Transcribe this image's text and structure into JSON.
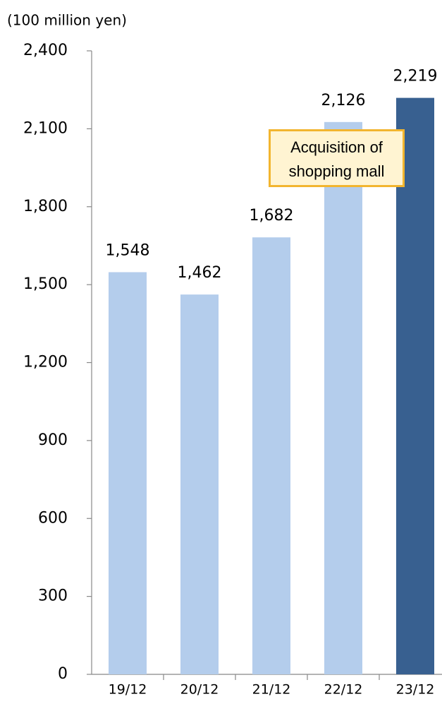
{
  "chart_data": {
    "type": "bar",
    "y_axis_label": "(100 million yen)",
    "categories": [
      "19/12",
      "20/12",
      "21/12",
      "22/12",
      "23/12"
    ],
    "values": [
      1548,
      1462,
      1682,
      2126,
      2219
    ],
    "value_labels": [
      "1,548",
      "1,462",
      "1,682",
      "2,126",
      "2,219"
    ],
    "colors": [
      "#b4cdec",
      "#b4cdec",
      "#b4cdec",
      "#b4cdec",
      "#386090"
    ],
    "annotation": "Acquisition of shopping mall",
    "ylim": [
      0,
      2400
    ],
    "yticks": [
      0,
      300,
      600,
      900,
      {
        "value": 1200,
        "label": "1,200"
      },
      {
        "value": 1500,
        "label": "1,500"
      },
      {
        "value": 1800,
        "label": "1,800"
      },
      {
        "value": 2100,
        "label": "2,100"
      },
      {
        "value": 2400,
        "label": "2,400"
      }
    ],
    "grid": false
  }
}
